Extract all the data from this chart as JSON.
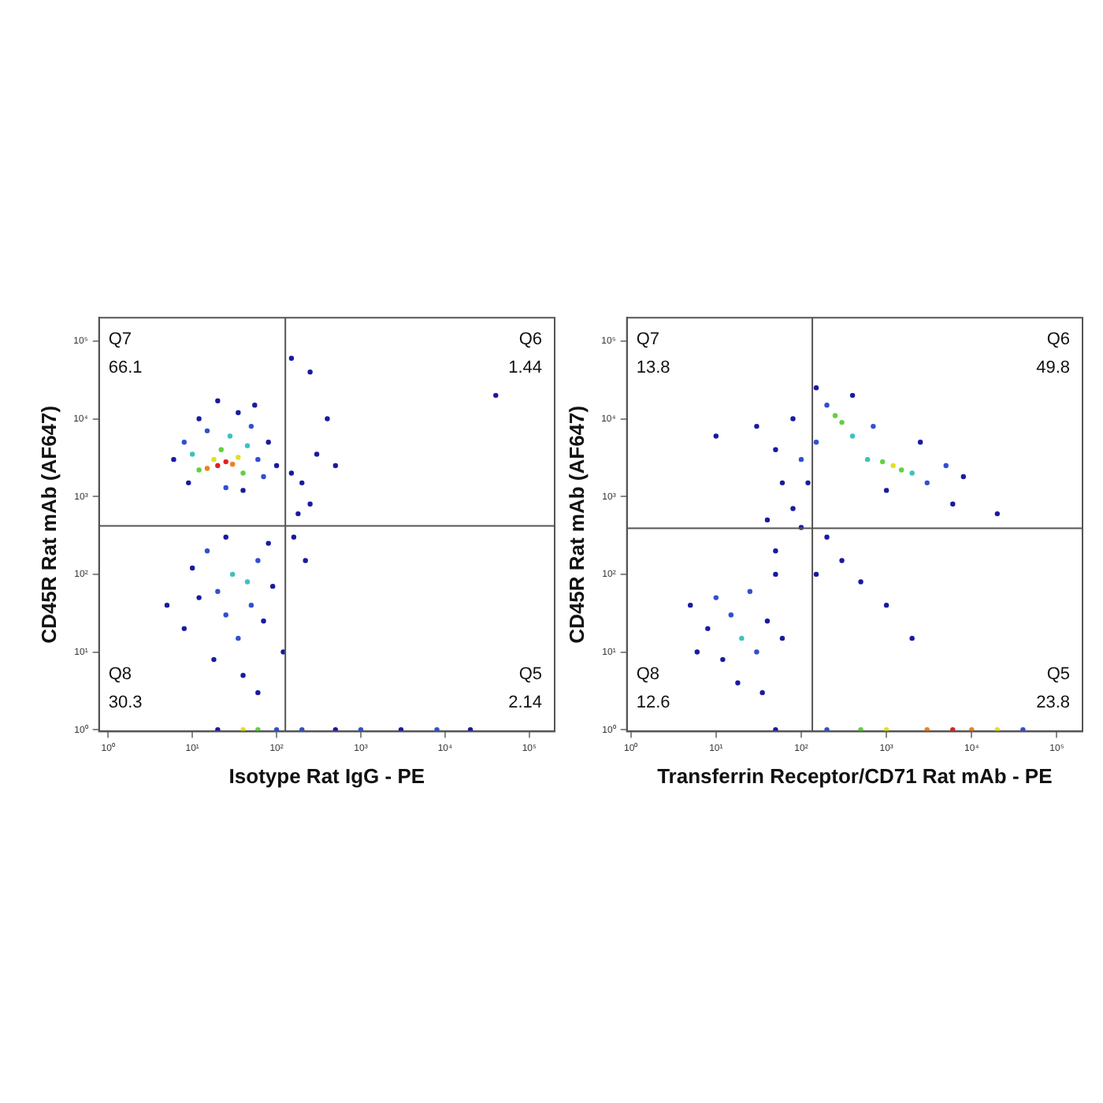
{
  "chart_data": [
    {
      "type": "scatter",
      "xlabel": "Isotype Rat IgG - PE",
      "ylabel": "CD45R Rat mAb (AF647)",
      "log": "xy",
      "grid": false,
      "legend": false,
      "marker": "circle",
      "xlim": [
        0.78,
        200000
      ],
      "ylim": [
        0.95,
        200000
      ],
      "xticks": [
        {
          "value": 1,
          "label": "10⁰"
        },
        {
          "value": 10,
          "label": "10¹"
        },
        {
          "value": 100,
          "label": "10²"
        },
        {
          "value": 1000,
          "label": "10³"
        },
        {
          "value": 10000,
          "label": "10⁴"
        },
        {
          "value": 100000,
          "label": "10⁵"
        }
      ],
      "yticks": [
        {
          "value": 1,
          "label": "10⁰"
        },
        {
          "value": 10,
          "label": "10¹"
        },
        {
          "value": 100,
          "label": "10²"
        },
        {
          "value": 1000,
          "label": "10³"
        },
        {
          "value": 10000,
          "label": "10⁴"
        },
        {
          "value": 100000,
          "label": "10⁵"
        }
      ],
      "ref_lines": [
        {
          "axis": "x",
          "value": 127,
          "color": "#555555"
        },
        {
          "axis": "y",
          "value": 420,
          "color": "#555555"
        }
      ],
      "annotations": [
        "Q7",
        "66.1",
        "Q6",
        "1.44",
        "Q8",
        "30.3",
        "Q5",
        "2.14"
      ],
      "x": [
        20,
        25,
        15,
        30,
        18,
        35,
        12,
        40,
        22,
        45,
        10,
        28,
        15,
        50,
        8,
        60,
        70,
        9,
        12,
        35,
        80,
        25,
        40,
        6,
        100,
        55,
        20,
        150,
        200,
        300,
        250,
        500,
        180,
        400,
        160,
        220,
        40000,
        150,
        250,
        30,
        45,
        20,
        60,
        15,
        25,
        50,
        35,
        12,
        80,
        10,
        18,
        40,
        70,
        8,
        90,
        25,
        60,
        5,
        120,
        20,
        40,
        60,
        100,
        200,
        500,
        1000,
        3000,
        8000,
        20000
      ],
      "values": [
        2500,
        2800,
        2300,
        2600,
        3000,
        3200,
        2200,
        2000,
        4000,
        4500,
        3500,
        6000,
        7000,
        8000,
        5000,
        3000,
        1800,
        1500,
        10000,
        12000,
        5000,
        1300,
        1200,
        3000,
        2500,
        15000,
        17000,
        2000,
        1500,
        3500,
        800,
        2500,
        600,
        10000,
        300,
        150,
        20000,
        60000,
        40000,
        100,
        80,
        60,
        150,
        200,
        30,
        40,
        15,
        50,
        250,
        120,
        8,
        5,
        25,
        20,
        70,
        300,
        3,
        40,
        10,
        1,
        1,
        1,
        1,
        1,
        1,
        1,
        1,
        1,
        1
      ],
      "colors": [
        "#e02020",
        "#e02020",
        "#f08020",
        "#f08020",
        "#e0e020",
        "#e0e020",
        "#60d040",
        "#60d040",
        "#60d040",
        "#40c0c0",
        "#40c0c0",
        "#40c0c0",
        "#3050d0",
        "#3050d0",
        "#3050d0",
        "#3050d0",
        "#3050d0",
        "#1a1aa0",
        "#1a1aa0",
        "#1a1aa0",
        "#1a1aa0",
        "#3050d0",
        "#1a1aa0",
        "#1a1aa0",
        "#1a1aa0",
        "#1a1aa0",
        "#1a1aa0",
        "#1a1aa0",
        "#1a1aa0",
        "#1a1aa0",
        "#1a1aa0",
        "#1a1aa0",
        "#1a1aa0",
        "#1a1aa0",
        "#1a1aa0",
        "#1a1aa0",
        "#1a1aa0",
        "#1a1aa0",
        "#1a1aa0",
        "#40c0c0",
        "#40c0c0",
        "#3050d0",
        "#3050d0",
        "#3050d0",
        "#3050d0",
        "#3050d0",
        "#3050d0",
        "#1a1aa0",
        "#1a1aa0",
        "#1a1aa0",
        "#1a1aa0",
        "#1a1aa0",
        "#1a1aa0",
        "#1a1aa0",
        "#1a1aa0",
        "#1a1aa0",
        "#1a1aa0",
        "#1a1aa0",
        "#1a1aa0",
        "#1a1aa0",
        "#e0e020",
        "#60d040",
        "#3050d0",
        "#3050d0",
        "#1a1aa0",
        "#3050d0",
        "#1a1aa0",
        "#3050d0",
        "#1a1aa0"
      ]
    },
    {
      "type": "scatter",
      "xlabel": "Transferrin Receptor/CD71 Rat mAb - PE",
      "ylabel": "CD45R Rat mAb (AF647)",
      "log": "xy",
      "grid": false,
      "legend": false,
      "marker": "circle",
      "xlim": [
        0.9,
        200000
      ],
      "ylim": [
        0.95,
        200000
      ],
      "xticks": [
        {
          "value": 1,
          "label": "10⁰"
        },
        {
          "value": 10,
          "label": "10¹"
        },
        {
          "value": 100,
          "label": "10²"
        },
        {
          "value": 1000,
          "label": "10³"
        },
        {
          "value": 10000,
          "label": "10⁴"
        },
        {
          "value": 100000,
          "label": "10⁵"
        }
      ],
      "yticks": [
        {
          "value": 1,
          "label": "10⁰"
        },
        {
          "value": 10,
          "label": "10¹"
        },
        {
          "value": 100,
          "label": "10²"
        },
        {
          "value": 1000,
          "label": "10³"
        },
        {
          "value": 10000,
          "label": "10⁴"
        },
        {
          "value": 100000,
          "label": "10⁵"
        }
      ],
      "ref_lines": [
        {
          "axis": "x",
          "value": 135,
          "color": "#555555"
        },
        {
          "axis": "y",
          "value": 390,
          "color": "#555555"
        }
      ],
      "annotations": [
        "Q7",
        "13.8",
        "Q6",
        "49.8",
        "Q8",
        "12.6",
        "Q5",
        "23.8"
      ],
      "x": [
        300,
        250,
        1200,
        1500,
        900,
        2000,
        400,
        600,
        150,
        200,
        3000,
        5000,
        700,
        100,
        80,
        50,
        30,
        120,
        2500,
        8000,
        400,
        1000,
        150,
        10,
        6000,
        60,
        20000,
        100,
        200,
        50,
        300,
        500,
        40,
        150,
        80,
        1000,
        2000,
        15,
        20,
        10,
        25,
        30,
        8,
        12,
        40,
        6,
        18,
        50,
        35,
        5,
        60,
        50,
        200,
        500,
        1000,
        3000,
        6000,
        10000,
        20000,
        40000
      ],
      "values": [
        9000,
        11000,
        2500,
        2200,
        2800,
        2000,
        6000,
        3000,
        5000,
        15000,
        1500,
        2500,
        8000,
        3000,
        10000,
        4000,
        8000,
        1500,
        5000,
        1800,
        20000,
        1200,
        25000,
        6000,
        800,
        1500,
        600,
        400,
        300,
        200,
        150,
        80,
        500,
        100,
        700,
        40,
        15,
        30,
        15,
        50,
        60,
        10,
        20,
        8,
        25,
        10,
        4,
        100,
        3,
        40,
        15,
        1,
        1,
        1,
        1,
        1,
        1,
        1,
        1,
        1
      ],
      "colors": [
        "#60d040",
        "#60d040",
        "#e0e020",
        "#60d040",
        "#60d040",
        "#40c0c0",
        "#40c0c0",
        "#40c0c0",
        "#3050d0",
        "#3050d0",
        "#3050d0",
        "#3050d0",
        "#3050d0",
        "#3050d0",
        "#1a1aa0",
        "#1a1aa0",
        "#1a1aa0",
        "#1a1aa0",
        "#1a1aa0",
        "#1a1aa0",
        "#1a1aa0",
        "#1a1aa0",
        "#1a1aa0",
        "#1a1aa0",
        "#1a1aa0",
        "#1a1aa0",
        "#1a1aa0",
        "#1a1aa0",
        "#1a1aa0",
        "#1a1aa0",
        "#1a1aa0",
        "#1a1aa0",
        "#1a1aa0",
        "#1a1aa0",
        "#1a1aa0",
        "#1a1aa0",
        "#1a1aa0",
        "#3050d0",
        "#40c0c0",
        "#3050d0",
        "#3050d0",
        "#3050d0",
        "#1a1aa0",
        "#1a1aa0",
        "#1a1aa0",
        "#1a1aa0",
        "#1a1aa0",
        "#1a1aa0",
        "#1a1aa0",
        "#1a1aa0",
        "#1a1aa0",
        "#1a1aa0",
        "#3050d0",
        "#60d040",
        "#e0e020",
        "#f08020",
        "#e02020",
        "#f08020",
        "#e0e020",
        "#3050d0"
      ]
    }
  ]
}
